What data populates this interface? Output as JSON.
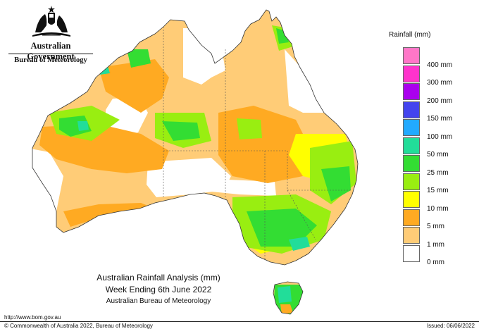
{
  "header": {
    "government": "Australian Government",
    "bureau": "Bureau of Meteorology"
  },
  "legend": {
    "title": "Rainfall (mm)",
    "items": [
      {
        "label": "",
        "color": "#ff77c8"
      },
      {
        "label": "400 mm",
        "color": "#ff33cc"
      },
      {
        "label": "300 mm",
        "color": "#aa00ee"
      },
      {
        "label": "200 mm",
        "color": "#4444ee"
      },
      {
        "label": "150 mm",
        "color": "#22aaff"
      },
      {
        "label": "100 mm",
        "color": "#22dd99"
      },
      {
        "label": "50 mm",
        "color": "#33dd33"
      },
      {
        "label": "25 mm",
        "color": "#99ee11"
      },
      {
        "label": "15 mm",
        "color": "#ffff00"
      },
      {
        "label": "10 mm",
        "color": "#ffaa22"
      },
      {
        "label": "5 mm",
        "color": "#ffcc77"
      },
      {
        "label": "1 mm",
        "color": "#ffffff"
      },
      {
        "label": "0 mm",
        "color": null
      }
    ]
  },
  "caption": {
    "line1": "Australian Rainfall Analysis (mm)",
    "line2": "Week Ending 6th June 2022",
    "line3": "Australian Bureau of Meteorology"
  },
  "footer": {
    "url": "http://www.bom.gov.au",
    "copyright": "© Commonwealth of Australia 2022, Bureau of Meteorology",
    "issued": "Issued: 06/06/2022"
  },
  "colors": {
    "light_orange": "#ffcc77",
    "orange": "#ffaa22",
    "yellow": "#ffff00",
    "yellow_green": "#99ee11",
    "green": "#33dd33",
    "teal": "#22dd99",
    "light_blue": "#22aaff",
    "none": "#ffffff"
  }
}
